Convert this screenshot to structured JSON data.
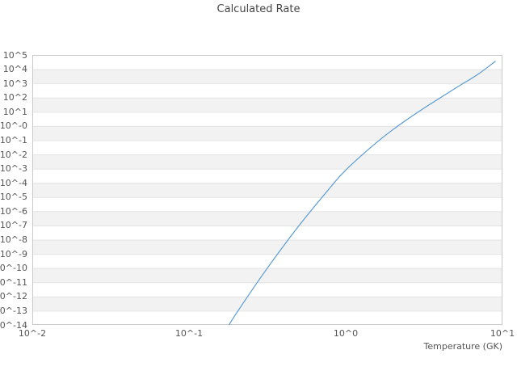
{
  "title": "Calculated Rate",
  "colors": {
    "curve": "#5b9bd5",
    "band": "#f2f2f2",
    "grid": "#e4e4e4",
    "border": "#c9c9c9",
    "tick_text": "#555555",
    "title_text": "#454545",
    "background": "#ffffff"
  },
  "chart_data": {
    "type": "line",
    "title": "Calculated Rate",
    "xlabel": "Temperature (GK)",
    "ylabel": "",
    "x_scale": "log",
    "y_scale": "log",
    "xlim_log10": [
      -2,
      1
    ],
    "ylim_log10": [
      -14,
      5
    ],
    "grid": "horizontal-only",
    "banded_background": true,
    "legend": "none",
    "x_ticks": [
      {
        "label": "10^-2",
        "log10": -2
      },
      {
        "label": "10^-1",
        "log10": -1
      },
      {
        "label": "10^0",
        "log10": 0
      },
      {
        "label": "10^1",
        "log10": 1
      }
    ],
    "y_ticks": [
      {
        "label": "10^5",
        "log10": 5
      },
      {
        "label": "10^4",
        "log10": 4
      },
      {
        "label": "10^3",
        "log10": 3
      },
      {
        "label": "10^2",
        "log10": 2
      },
      {
        "label": "10^1",
        "log10": 1
      },
      {
        "label": "10^-0",
        "log10": 0
      },
      {
        "label": "10^-1",
        "log10": -1
      },
      {
        "label": "10^-2",
        "log10": -2
      },
      {
        "label": "10^-3",
        "log10": -3
      },
      {
        "label": "10^-4",
        "log10": -4
      },
      {
        "label": "10^-5",
        "log10": -5
      },
      {
        "label": "10^-6",
        "log10": -6
      },
      {
        "label": "10^-7",
        "log10": -7
      },
      {
        "label": "10^-8",
        "log10": -8
      },
      {
        "label": "10^-9",
        "log10": -9
      },
      {
        "label": "10^-10",
        "log10": -10
      },
      {
        "label": "10^-11",
        "log10": -11
      },
      {
        "label": "10^-12",
        "log10": -12
      },
      {
        "label": "10^-13",
        "log10": -13
      },
      {
        "label": "10^-14",
        "log10": -14
      }
    ],
    "series": [
      {
        "name": "calculated-rate",
        "x_GK": [
          0.18,
          0.2,
          0.3,
          0.5,
          0.8,
          1.0,
          1.5,
          2.0,
          3.0,
          5.0,
          7.0,
          9.0
        ],
        "log10_rate": [
          -14.0,
          -13.2,
          -10.35,
          -7.05,
          -4.3,
          -3.1,
          -1.35,
          -0.25,
          1.1,
          2.65,
          3.65,
          4.55
        ]
      }
    ]
  }
}
